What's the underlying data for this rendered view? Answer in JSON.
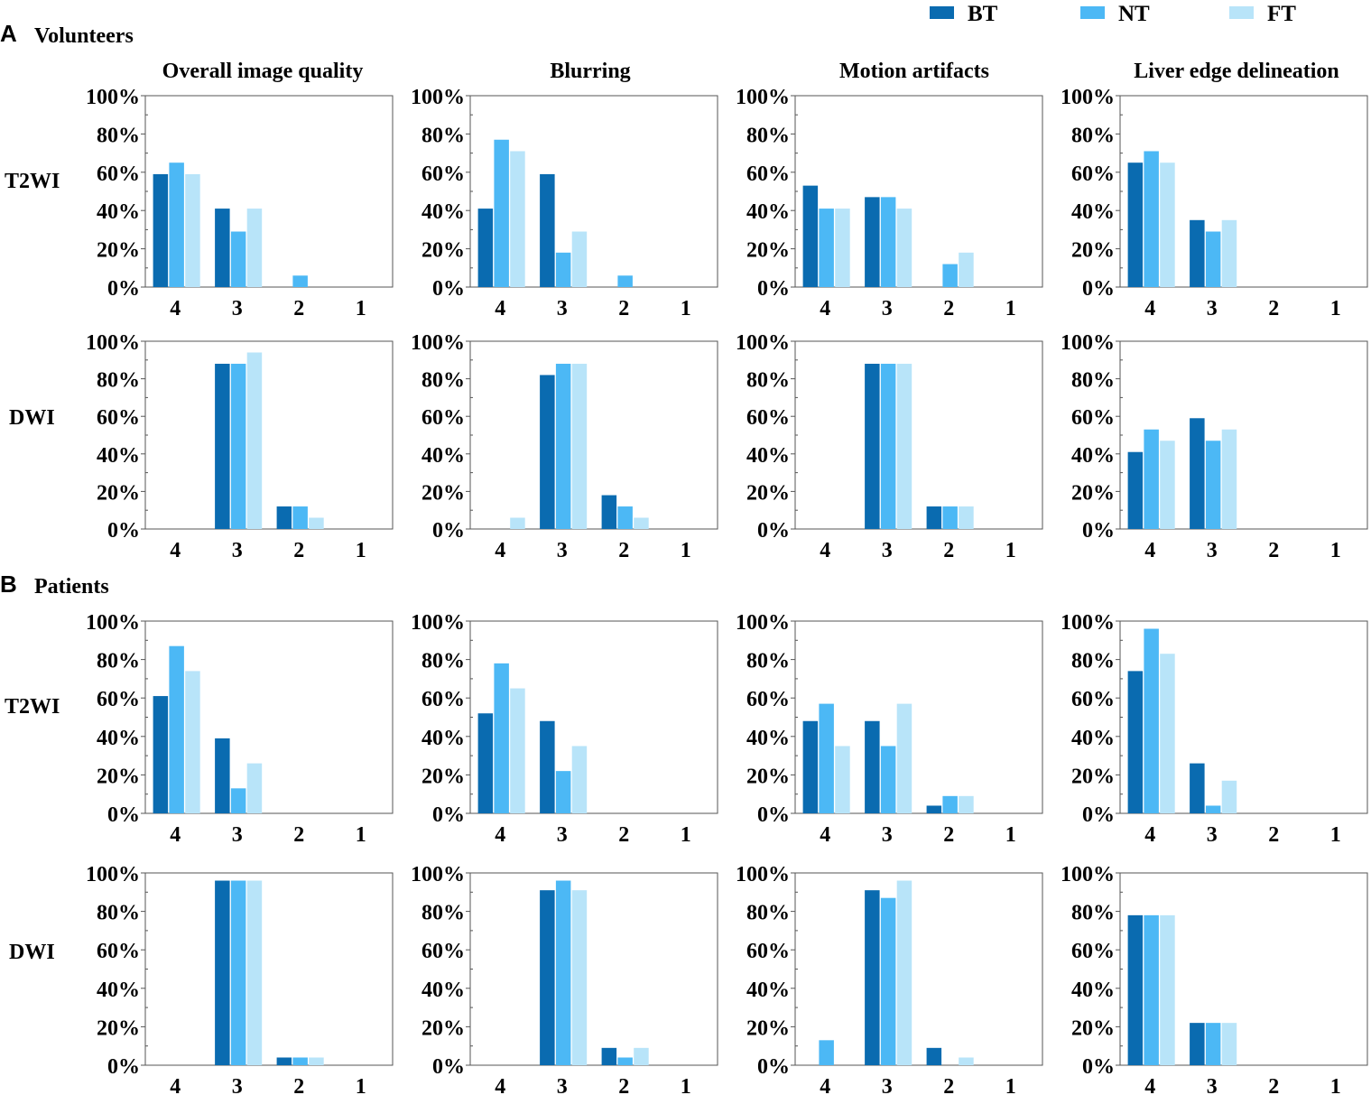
{
  "colors": {
    "BT": "#0a6bb0",
    "NT": "#4cb8f5",
    "FT": "#b8e4f9"
  },
  "legend": [
    {
      "key": "BT",
      "label": "BT"
    },
    {
      "key": "NT",
      "label": "NT"
    },
    {
      "key": "FT",
      "label": "FT"
    }
  ],
  "panels": [
    {
      "letter": "A",
      "title": "Volunteers"
    },
    {
      "letter": "B",
      "title": "Patients"
    }
  ],
  "columns": [
    "Overall image quality",
    "Blurring",
    "Motion artifacts",
    "Liver edge delineation"
  ],
  "row_labels": [
    "T2WI",
    "DWI",
    "T2WI",
    "DWI"
  ],
  "chart_data": {
    "type": "bar",
    "categories": [
      "4",
      "3",
      "2",
      "1"
    ],
    "yticks": [
      "0%",
      "20%",
      "40%",
      "60%",
      "80%",
      "100%"
    ],
    "ylim": [
      0,
      100
    ],
    "series_names": [
      "BT",
      "NT",
      "FT"
    ],
    "charts": [
      {
        "group": "Volunteers",
        "sequence": "T2WI",
        "metric": "Overall image quality",
        "series": [
          {
            "name": "BT",
            "values": [
              59,
              41,
              0,
              0
            ]
          },
          {
            "name": "NT",
            "values": [
              65,
              29,
              6,
              0
            ]
          },
          {
            "name": "FT",
            "values": [
              59,
              41,
              0,
              0
            ]
          }
        ]
      },
      {
        "group": "Volunteers",
        "sequence": "T2WI",
        "metric": "Blurring",
        "series": [
          {
            "name": "BT",
            "values": [
              41,
              59,
              0,
              0
            ]
          },
          {
            "name": "NT",
            "values": [
              77,
              18,
              6,
              0
            ]
          },
          {
            "name": "FT",
            "values": [
              71,
              29,
              0,
              0
            ]
          }
        ]
      },
      {
        "group": "Volunteers",
        "sequence": "T2WI",
        "metric": "Motion artifacts",
        "series": [
          {
            "name": "BT",
            "values": [
              53,
              47,
              0,
              0
            ]
          },
          {
            "name": "NT",
            "values": [
              41,
              47,
              12,
              0
            ]
          },
          {
            "name": "FT",
            "values": [
              41,
              41,
              18,
              0
            ]
          }
        ]
      },
      {
        "group": "Volunteers",
        "sequence": "T2WI",
        "metric": "Liver edge delineation",
        "series": [
          {
            "name": "BT",
            "values": [
              65,
              35,
              0,
              0
            ]
          },
          {
            "name": "NT",
            "values": [
              71,
              29,
              0,
              0
            ]
          },
          {
            "name": "FT",
            "values": [
              65,
              35,
              0,
              0
            ]
          }
        ]
      },
      {
        "group": "Volunteers",
        "sequence": "DWI",
        "metric": "Overall image quality",
        "series": [
          {
            "name": "BT",
            "values": [
              0,
              88,
              12,
              0
            ]
          },
          {
            "name": "NT",
            "values": [
              0,
              88,
              12,
              0
            ]
          },
          {
            "name": "FT",
            "values": [
              0,
              94,
              6,
              0
            ]
          }
        ]
      },
      {
        "group": "Volunteers",
        "sequence": "DWI",
        "metric": "Blurring",
        "series": [
          {
            "name": "BT",
            "values": [
              0,
              82,
              18,
              0
            ]
          },
          {
            "name": "NT",
            "values": [
              0,
              88,
              12,
              0
            ]
          },
          {
            "name": "FT",
            "values": [
              6,
              88,
              6,
              0
            ]
          }
        ]
      },
      {
        "group": "Volunteers",
        "sequence": "DWI",
        "metric": "Motion artifacts",
        "series": [
          {
            "name": "BT",
            "values": [
              0,
              88,
              12,
              0
            ]
          },
          {
            "name": "NT",
            "values": [
              0,
              88,
              12,
              0
            ]
          },
          {
            "name": "FT",
            "values": [
              0,
              88,
              12,
              0
            ]
          }
        ]
      },
      {
        "group": "Volunteers",
        "sequence": "DWI",
        "metric": "Liver edge delineation",
        "series": [
          {
            "name": "BT",
            "values": [
              41,
              59,
              0,
              0
            ]
          },
          {
            "name": "NT",
            "values": [
              53,
              47,
              0,
              0
            ]
          },
          {
            "name": "FT",
            "values": [
              47,
              53,
              0,
              0
            ]
          }
        ]
      },
      {
        "group": "Patients",
        "sequence": "T2WI",
        "metric": "Overall image quality",
        "series": [
          {
            "name": "BT",
            "values": [
              61,
              39,
              0,
              0
            ]
          },
          {
            "name": "NT",
            "values": [
              87,
              13,
              0,
              0
            ]
          },
          {
            "name": "FT",
            "values": [
              74,
              26,
              0,
              0
            ]
          }
        ]
      },
      {
        "group": "Patients",
        "sequence": "T2WI",
        "metric": "Blurring",
        "series": [
          {
            "name": "BT",
            "values": [
              52,
              48,
              0,
              0
            ]
          },
          {
            "name": "NT",
            "values": [
              78,
              22,
              0,
              0
            ]
          },
          {
            "name": "FT",
            "values": [
              65,
              35,
              0,
              0
            ]
          }
        ]
      },
      {
        "group": "Patients",
        "sequence": "T2WI",
        "metric": "Motion artifacts",
        "series": [
          {
            "name": "BT",
            "values": [
              48,
              48,
              4,
              0
            ]
          },
          {
            "name": "NT",
            "values": [
              57,
              35,
              9,
              0
            ]
          },
          {
            "name": "FT",
            "values": [
              35,
              57,
              9,
              0
            ]
          }
        ]
      },
      {
        "group": "Patients",
        "sequence": "T2WI",
        "metric": "Liver edge delineation",
        "series": [
          {
            "name": "BT",
            "values": [
              74,
              26,
              0,
              0
            ]
          },
          {
            "name": "NT",
            "values": [
              96,
              4,
              0,
              0
            ]
          },
          {
            "name": "FT",
            "values": [
              83,
              17,
              0,
              0
            ]
          }
        ]
      },
      {
        "group": "Patients",
        "sequence": "DWI",
        "metric": "Overall image quality",
        "series": [
          {
            "name": "BT",
            "values": [
              0,
              96,
              4,
              0
            ]
          },
          {
            "name": "NT",
            "values": [
              0,
              96,
              4,
              0
            ]
          },
          {
            "name": "FT",
            "values": [
              0,
              96,
              4,
              0
            ]
          }
        ]
      },
      {
        "group": "Patients",
        "sequence": "DWI",
        "metric": "Blurring",
        "series": [
          {
            "name": "BT",
            "values": [
              0,
              91,
              9,
              0
            ]
          },
          {
            "name": "NT",
            "values": [
              0,
              96,
              4,
              0
            ]
          },
          {
            "name": "FT",
            "values": [
              0,
              91,
              9,
              0
            ]
          }
        ]
      },
      {
        "group": "Patients",
        "sequence": "DWI",
        "metric": "Motion artifacts",
        "series": [
          {
            "name": "BT",
            "values": [
              0,
              91,
              9,
              0
            ]
          },
          {
            "name": "NT",
            "values": [
              13,
              87,
              0,
              0
            ]
          },
          {
            "name": "FT",
            "values": [
              0,
              96,
              4,
              0
            ]
          }
        ]
      },
      {
        "group": "Patients",
        "sequence": "DWI",
        "metric": "Liver edge delineation",
        "series": [
          {
            "name": "BT",
            "values": [
              78,
              22,
              0,
              0
            ]
          },
          {
            "name": "NT",
            "values": [
              78,
              22,
              0,
              0
            ]
          },
          {
            "name": "FT",
            "values": [
              78,
              22,
              0,
              0
            ]
          }
        ]
      }
    ]
  }
}
